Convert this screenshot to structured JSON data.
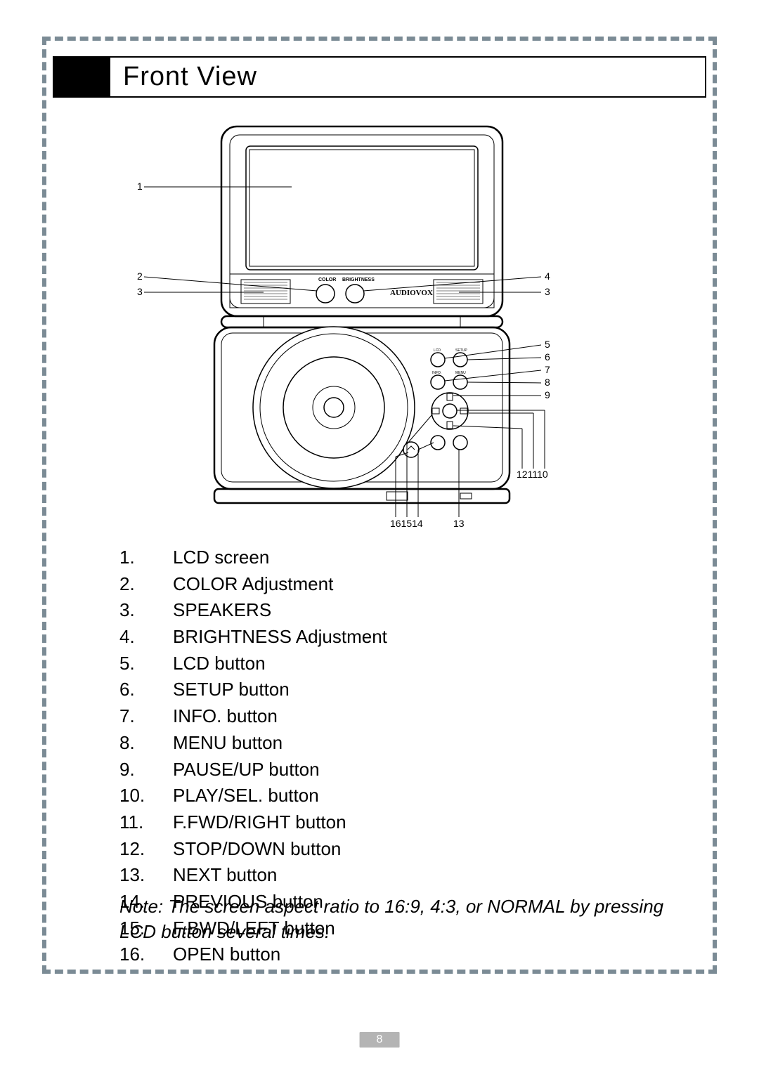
{
  "title": "Front View",
  "brand": "AUDIOVOX",
  "knobLabels": {
    "left": "COLOR",
    "right": "BRIGHTNESS"
  },
  "btnLabels": {
    "lcd": "LCD",
    "setup": "SETUP",
    "info": "INFO.",
    "menu": "MENU"
  },
  "callouts": {
    "left": [
      {
        "n": "1"
      },
      {
        "n": "2"
      },
      {
        "n": "3"
      }
    ],
    "right_top": [
      {
        "n": "4"
      },
      {
        "n": "3"
      }
    ],
    "right_mid": [
      {
        "n": "5"
      },
      {
        "n": "6"
      },
      {
        "n": "7"
      },
      {
        "n": "8"
      },
      {
        "n": "9"
      }
    ],
    "right_bottom_nums": "121110",
    "bottom_left_nums": "161514",
    "bottom_right_num": "13"
  },
  "list": [
    {
      "n": "1.",
      "t": "LCD screen"
    },
    {
      "n": "2.",
      "t": "COLOR Adjustment"
    },
    {
      "n": "3.",
      "t": "SPEAKERS"
    },
    {
      "n": "4.",
      "t": "BRIGHTNESS Adjustment"
    },
    {
      "n": "5.",
      "t": "LCD button"
    },
    {
      "n": "6.",
      "t": "SETUP button"
    },
    {
      "n": "7.",
      "t": "INFO. button"
    },
    {
      "n": "8.",
      "t": "MENU button"
    },
    {
      "n": "9.",
      "t": "PAUSE/UP button"
    },
    {
      "n": "10.",
      "t": "PLAY/SEL. button"
    },
    {
      "n": "11.",
      "t": "F.FWD/RIGHT button"
    },
    {
      "n": "12.",
      "t": "STOP/DOWN button"
    },
    {
      "n": "13.",
      "t": "NEXT button"
    },
    {
      "n": "14.",
      "t": "PREVIOUS button"
    },
    {
      "n": "15.",
      "t": "F.BWD/LEFT button"
    },
    {
      "n": "16.",
      "t": "OPEN button"
    }
  ],
  "note": "Note: The screen aspect ratio to 16:9, 4:3, or NORMAL by pressing LCD button several times.",
  "pageNumber": "8"
}
